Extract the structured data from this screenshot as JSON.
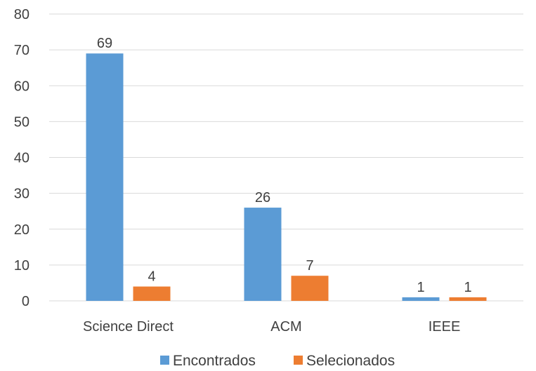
{
  "chart_data": {
    "type": "bar",
    "title": "",
    "xlabel": "",
    "ylabel": "",
    "categories": [
      "Science Direct",
      "ACM",
      "IEEE"
    ],
    "series": [
      {
        "name": "Encontrados",
        "values": [
          69,
          26,
          1
        ],
        "color": "#5b9bd5"
      },
      {
        "name": "Selecionados",
        "values": [
          4,
          7,
          1
        ],
        "color": "#ed7d31"
      }
    ],
    "ylim": [
      0,
      80
    ],
    "yticks": [
      0,
      10,
      20,
      30,
      40,
      50,
      60,
      70,
      80
    ],
    "grid": true,
    "data_labels": true,
    "legend_position": "bottom"
  }
}
